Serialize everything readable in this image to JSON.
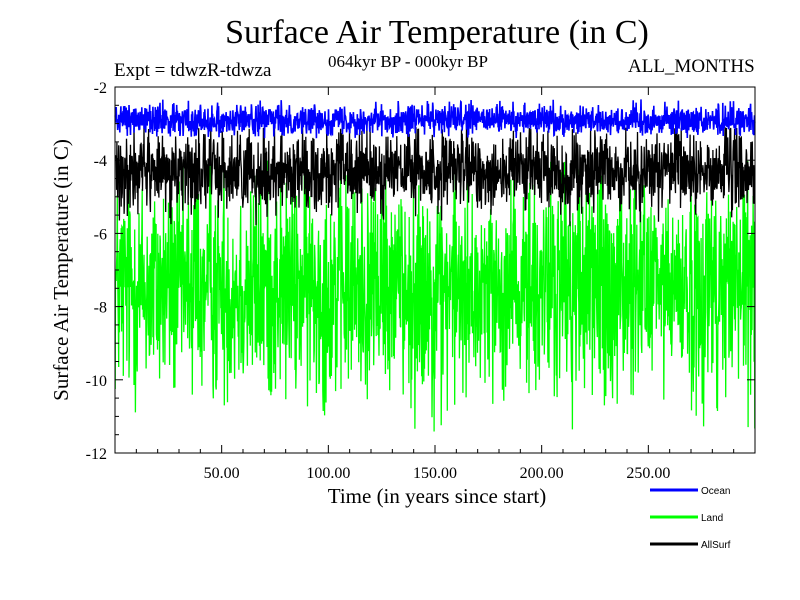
{
  "header": {
    "title": "Surface Air Temperature (in C)",
    "experiment": "Expt = tdwzR-tdwza",
    "period": "064kyr BP - 000kyr BP",
    "months": "ALL_MONTHS"
  },
  "chart_data": {
    "type": "line",
    "title": "Surface Air Temperature (in C)",
    "xlabel": "Time (in years since start)",
    "ylabel": "Surface Air Temperature (in C)",
    "xlim": [
      0,
      300
    ],
    "ylim": [
      -12,
      -2
    ],
    "x_ticks": [
      "50.00",
      "100.00",
      "150.00",
      "200.00",
      "250.00"
    ],
    "x_tick_values": [
      50,
      100,
      150,
      200,
      250
    ],
    "y_ticks": [
      "-2",
      "-4",
      "-6",
      "-8",
      "-10",
      "-12"
    ],
    "y_tick_values": [
      -2,
      -4,
      -6,
      -8,
      -10,
      -12
    ],
    "legend_position": "bottom-right, below plot",
    "series": [
      {
        "name": "Ocean",
        "color": "#0000ff",
        "mean": -2.9,
        "min": -3.4,
        "max": -2.3,
        "visible_stroke": "thick band"
      },
      {
        "name": "Land",
        "color": "#00ff00",
        "mean": -7.5,
        "min": -11.8,
        "max": -4.0,
        "visible_stroke": "dense band"
      },
      {
        "name": "AllSurf",
        "color": "#000000",
        "mean": -4.3,
        "min": -5.9,
        "max": -3.1,
        "visible_stroke": "dense band"
      }
    ],
    "x_range": {
      "start": 0.08,
      "end": 299.92,
      "step": 0.0833
    }
  }
}
